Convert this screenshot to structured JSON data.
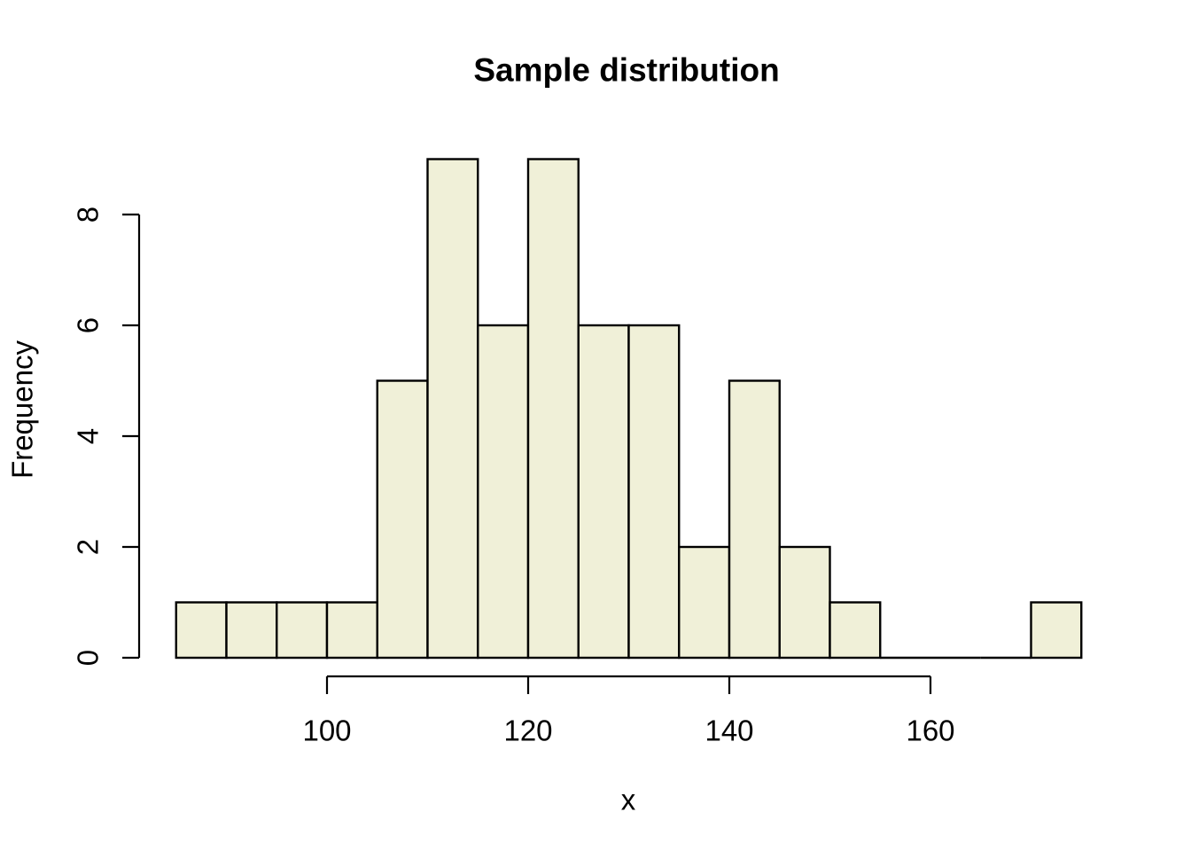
{
  "figure": {
    "background": "#ffffff"
  },
  "chart_data": {
    "type": "bar",
    "subtype": "histogram",
    "title": "Sample distribution",
    "xlabel": "x",
    "ylabel": "Frequency",
    "bin_start": 85,
    "bin_width": 5,
    "bin_edges": [
      85,
      90,
      95,
      100,
      105,
      110,
      115,
      120,
      125,
      130,
      135,
      140,
      145,
      150,
      155,
      160,
      165,
      170,
      175
    ],
    "counts": [
      1,
      1,
      1,
      1,
      5,
      9,
      6,
      9,
      6,
      6,
      2,
      5,
      2,
      1,
      0,
      0,
      0,
      1
    ],
    "x_ticks": [
      100,
      120,
      140,
      160
    ],
    "y_ticks": [
      0,
      2,
      4,
      6,
      8
    ],
    "xlim": [
      85,
      175
    ],
    "ylim": [
      0,
      9
    ],
    "grid": false,
    "legend": false,
    "colors": {
      "bar_fill": "#F0F0D8",
      "bar_border": "#000000",
      "axis": "#000000",
      "text": "#000000",
      "background": "#ffffff"
    }
  }
}
